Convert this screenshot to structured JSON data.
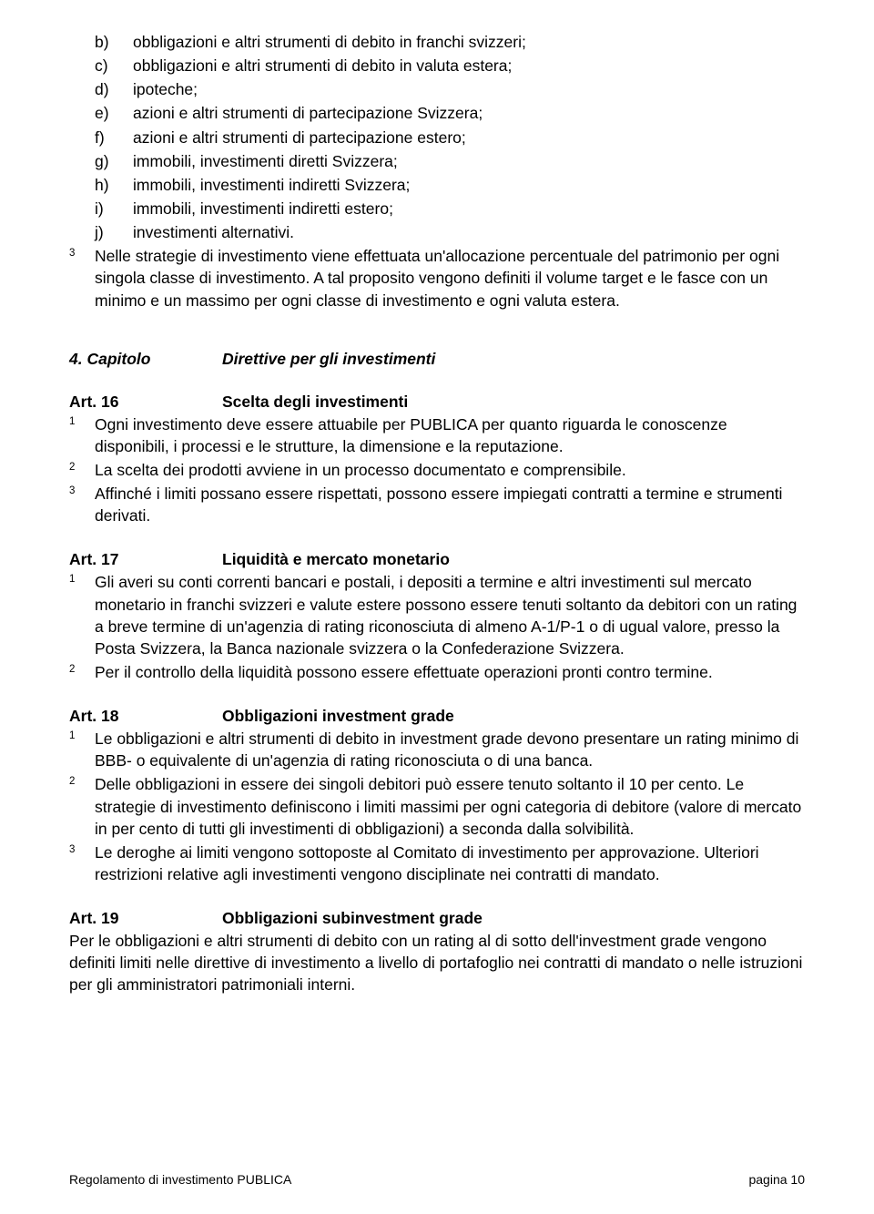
{
  "list": {
    "b": {
      "letter": "b)",
      "text": "obbligazioni e altri strumenti di debito in franchi svizzeri;"
    },
    "c": {
      "letter": "c)",
      "text": "obbligazioni e altri strumenti di debito in valuta estera;"
    },
    "d": {
      "letter": "d)",
      "text": "ipoteche;"
    },
    "e": {
      "letter": "e)",
      "text": "azioni e altri strumenti di partecipazione Svizzera;"
    },
    "f": {
      "letter": "f)",
      "text": "azioni e altri strumenti di partecipazione estero;"
    },
    "g": {
      "letter": "g)",
      "text": "immobili, investimenti diretti Svizzera;"
    },
    "h": {
      "letter": "h)",
      "text": "immobili, investimenti indiretti Svizzera;"
    },
    "i": {
      "letter": "i)",
      "text": "immobili, investimenti indiretti estero;"
    },
    "j": {
      "letter": "j)",
      "text": "investimenti alternativi."
    }
  },
  "para3": {
    "sup": "3",
    "text": "Nelle strategie di investimento viene effettuata un'allocazione percentuale del patrimonio per ogni singola classe di investimento. A tal proposito vengono definiti il volume target e le fasce con un minimo e un massimo per ogni classe di investimento e ogni valuta estera."
  },
  "chapter": {
    "num": "4. Capitolo",
    "title": "Direttive per gli investimenti"
  },
  "art16": {
    "num": "Art. 16",
    "title": "Scelta degli investimenti",
    "p1": {
      "sup": "1",
      "text": "Ogni investimento deve essere attuabile per PUBLICA per quanto riguarda le conoscenze disponibili, i processi e le strutture, la dimensione e la reputazione."
    },
    "p2": {
      "sup": "2",
      "text": "La scelta dei prodotti avviene in un processo documentato e comprensibile."
    },
    "p3": {
      "sup": "3",
      "text": "Affinché i limiti possano essere rispettati, possono essere impiegati contratti a termine e strumenti derivati."
    }
  },
  "art17": {
    "num": "Art. 17",
    "title": "Liquidità e mercato monetario",
    "p1": {
      "sup": "1",
      "text": "Gli averi su conti correnti bancari e postali, i depositi a termine e altri investimenti sul mercato monetario in franchi svizzeri e valute estere possono essere tenuti soltanto da debitori con un rating a breve termine di un'agenzia di rating riconosciuta di almeno A-1/P-1 o di ugual valore, presso la Posta Svizzera, la Banca nazionale svizzera o la Confederazione Svizzera."
    },
    "p2": {
      "sup": "2",
      "text": "Per il controllo della liquidità possono essere effettuate operazioni pronti contro termine."
    }
  },
  "art18": {
    "num": "Art. 18",
    "title": "Obbligazioni investment grade",
    "p1": {
      "sup": "1",
      "text": "Le obbligazioni e altri strumenti di debito in investment grade devono presentare un rating minimo di BBB- o equivalente di un'agenzia di rating riconosciuta o di una banca."
    },
    "p2": {
      "sup": "2",
      "text": "Delle obbligazioni in essere dei singoli debitori può essere tenuto soltanto il 10 per cento. Le strategie di investimento definiscono i limiti massimi per ogni categoria di debitore (valore di mercato in per cento di tutti gli investimenti di obbligazioni) a seconda dalla solvibilità."
    },
    "p3": {
      "sup": "3",
      "text": "Le deroghe ai limiti vengono sottoposte al Comitato di investimento per approvazione. Ulteriori restrizioni relative agli investimenti vengono disciplinate nei contratti di mandato."
    }
  },
  "art19": {
    "num": "Art. 19",
    "title": "Obbligazioni subinvestment grade",
    "text": "Per le obbligazioni e altri strumenti di debito con un rating al di sotto dell'investment grade vengono definiti limiti nelle direttive di investimento a livello di portafoglio nei contratti di mandato o nelle istruzioni per gli amministratori patrimoniali interni."
  },
  "footer": {
    "left": "Regolamento di investimento PUBLICA",
    "right": "pagina 10"
  }
}
